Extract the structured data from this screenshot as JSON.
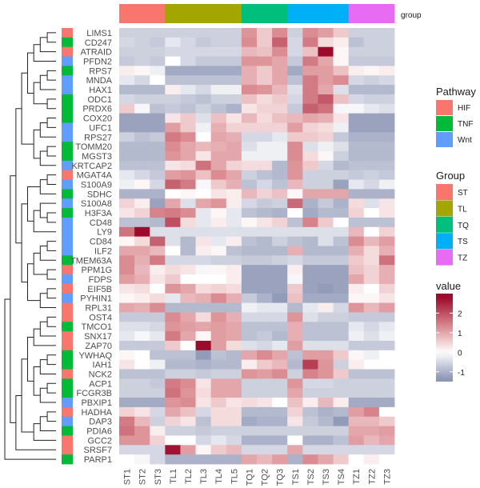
{
  "chart_data": {
    "type": "heatmap",
    "columns": [
      "ST1",
      "ST2",
      "ST3",
      "TL1",
      "TL2",
      "TL3",
      "TL4",
      "TL5",
      "TQ1",
      "TQ2",
      "TQ3",
      "TS1",
      "TS2",
      "TS3",
      "TS4",
      "TZ1",
      "TZ2",
      "TZ3"
    ],
    "rows": [
      "LIMS1",
      "CD247",
      "ATRAID",
      "PFDN2",
      "RPS7",
      "MNDA",
      "HAX1",
      "ODC1",
      "PRDX6",
      "COX20",
      "UFC1",
      "RPS27",
      "TOMM20",
      "MGST3",
      "KRTCAP2",
      "MGAT4A",
      "S100A9",
      "SDHC",
      "S100A8",
      "H3F3A",
      "CD48",
      "LY9",
      "CD84",
      "ILF2",
      "TMEM63A",
      "PPM1G",
      "FDPS",
      "EIF5B",
      "PYHIN1",
      "RPL31",
      "OST4",
      "TMCO1",
      "SNX17",
      "ZAP70",
      "YWHAQ",
      "IAH1",
      "NCK2",
      "ACP1",
      "FCGR3B",
      "PBXIP1",
      "HADHA",
      "DAP3",
      "PDIA6",
      "GCC2",
      "SRSF7",
      "PARP1"
    ],
    "values": [
      [
        -0.6,
        -0.6,
        -0.6,
        -0.6,
        -0.6,
        -0.6,
        -0.6,
        -0.6,
        1.2,
        0.6,
        1.3,
        -0.6,
        1.3,
        1.1,
        0.6,
        -0.6,
        -0.6,
        -0.6
      ],
      [
        -0.5,
        -0.6,
        -0.7,
        -0.3,
        -0.5,
        -0.7,
        -0.6,
        -0.6,
        1.3,
        0.6,
        1.8,
        -0.5,
        1.5,
        0.4,
        0.2,
        -0.8,
        -0.6,
        -0.6
      ],
      [
        -0.6,
        -0.6,
        -0.6,
        -0.5,
        -0.5,
        -0.5,
        -0.5,
        -0.5,
        0.8,
        0.7,
        1.3,
        -0.5,
        0.7,
        2.8,
        0.1,
        -0.6,
        -0.6,
        -0.6
      ],
      [
        -0.7,
        -0.6,
        -0.7,
        0.0,
        -0.5,
        -0.7,
        -0.7,
        -0.7,
        1.2,
        1.2,
        1.0,
        -0.7,
        1.5,
        1.0,
        0.1,
        -0.7,
        -0.7,
        -0.7
      ],
      [
        0.2,
        0.1,
        -0.2,
        -1.1,
        -1.1,
        -1.1,
        -1.1,
        -1.1,
        0.9,
        0.6,
        1.0,
        -1.1,
        1.1,
        1.1,
        0.7,
        0.2,
        0.1,
        0.2
      ],
      [
        -0.3,
        -0.5,
        0.0,
        -0.8,
        -0.8,
        -0.8,
        -0.8,
        -0.8,
        0.9,
        0.6,
        1.0,
        -0.8,
        1.5,
        1.1,
        1.3,
        -0.5,
        -0.6,
        -0.5
      ],
      [
        -0.9,
        -0.9,
        -0.9,
        0.2,
        -0.3,
        -0.5,
        -0.2,
        -0.2,
        1.3,
        1.2,
        0.8,
        -0.4,
        1.5,
        1.0,
        -0.4,
        -0.9,
        -0.9,
        -0.9
      ],
      [
        -0.5,
        -0.6,
        -0.6,
        -0.6,
        -0.7,
        -0.8,
        -0.6,
        -0.6,
        0.7,
        0.4,
        0.6,
        -0.5,
        1.5,
        1.9,
        0.7,
        -0.5,
        -0.6,
        -0.6
      ],
      [
        0.6,
        -0.1,
        -0.8,
        -0.7,
        -0.8,
        -0.6,
        -0.8,
        -1.0,
        0.3,
        0.5,
        0.5,
        -0.7,
        1.8,
        1.6,
        -0.1,
        -0.1,
        -0.3,
        -0.4
      ],
      [
        -1.2,
        -1.2,
        -1.2,
        0.3,
        0.6,
        -0.4,
        0.7,
        0.3,
        0.8,
        0.4,
        0.7,
        0.8,
        1.0,
        0.9,
        0.3,
        -1.2,
        -1.2,
        -1.2
      ],
      [
        -1.2,
        -1.2,
        -1.2,
        1.1,
        0.6,
        -0.2,
        0.9,
        0.5,
        0.5,
        0.5,
        0.5,
        1.1,
        0.5,
        0.4,
        -0.2,
        -1.2,
        -1.2,
        -1.2
      ],
      [
        -0.6,
        -0.8,
        -0.7,
        1.5,
        1.3,
        0.0,
        1.0,
        0.9,
        -0.5,
        -0.5,
        -0.3,
        0.6,
        0.6,
        0.5,
        -0.7,
        -1.0,
        -1.0,
        -1.0
      ],
      [
        -0.9,
        -0.9,
        -0.9,
        1.3,
        1.0,
        0.8,
        0.9,
        1.0,
        -0.4,
        -0.2,
        -0.2,
        1.3,
        -0.4,
        -0.2,
        -0.4,
        -0.9,
        -0.9,
        -0.9
      ],
      [
        -0.9,
        -0.9,
        -0.9,
        1.2,
        1.0,
        0.3,
        1.0,
        1.0,
        -0.2,
        -0.2,
        -0.2,
        1.3,
        0.4,
        0.1,
        -0.6,
        -0.9,
        -0.9,
        -0.9
      ],
      [
        -0.8,
        -0.8,
        -0.8,
        0.3,
        0.4,
        1.6,
        1.0,
        0.5,
        0.4,
        0.4,
        -0.9,
        1.2,
        0.6,
        -0.5,
        -0.9,
        -0.8,
        -0.8,
        -0.8
      ],
      [
        -0.3,
        -0.5,
        -0.7,
        1.1,
        1.2,
        0.7,
        1.3,
        1.0,
        -0.6,
        -0.8,
        -0.9,
        1.2,
        -0.6,
        -0.6,
        -0.6,
        -0.7,
        -0.6,
        -0.7
      ],
      [
        -0.2,
        0.1,
        -0.5,
        1.8,
        1.5,
        -0.1,
        0.6,
        0.9,
        -0.8,
        -0.5,
        -0.8,
        0.8,
        -0.6,
        -0.6,
        -1.2,
        -0.3,
        -0.5,
        -0.2
      ],
      [
        -1.0,
        -1.0,
        -1.0,
        0.0,
        0.1,
        0.0,
        0.3,
        0.2,
        0.8,
        0.5,
        0.7,
        0.1,
        1.0,
        1.0,
        1.0,
        -1.0,
        -1.0,
        -1.0
      ],
      [
        0.5,
        0.2,
        -1.2,
        1.0,
        -0.4,
        1.0,
        1.2,
        0.2,
        -0.5,
        -0.7,
        -0.6,
        1.7,
        -1.0,
        -0.7,
        -1.0,
        0.4,
        -0.4,
        0.3
      ],
      [
        0.3,
        0.5,
        1.4,
        1.5,
        1.3,
        -0.3,
        0.1,
        -0.3,
        -0.8,
        -0.9,
        -1.0,
        0.0,
        -1.1,
        -0.9,
        -0.9,
        0.5,
        0.0,
        0.3
      ],
      [
        -0.8,
        -0.8,
        -0.9,
        2.0,
        0.4,
        -0.3,
        0.2,
        -0.3,
        0.1,
        0.3,
        0.5,
        -0.8,
        1.4,
        0.6,
        0.0,
        -0.8,
        -0.8,
        -0.8
      ],
      [
        1.6,
        2.8,
        -0.4,
        -0.4,
        -0.4,
        -0.4,
        -0.4,
        -0.4,
        -0.4,
        -0.4,
        -0.4,
        -0.4,
        -0.4,
        -0.4,
        -0.4,
        0.8,
        0.0,
        0.5
      ],
      [
        0.1,
        0.4,
        1.8,
        -0.4,
        -0.9,
        0.3,
        -0.3,
        0.2,
        -0.8,
        -0.9,
        -0.6,
        -0.8,
        -0.9,
        -0.4,
        -0.8,
        1.3,
        0.8,
        1.1
      ],
      [
        1.0,
        1.0,
        0.8,
        0.0,
        -0.9,
        0.2,
        0.1,
        -0.8,
        -0.9,
        -0.9,
        -0.9,
        0.9,
        -0.9,
        -0.9,
        -0.9,
        0.9,
        0.4,
        0.9
      ],
      [
        1.3,
        0.9,
        1.5,
        -0.5,
        -0.5,
        -0.5,
        -0.6,
        -0.6,
        -0.7,
        -0.7,
        -0.6,
        -0.5,
        -0.7,
        -0.7,
        -0.7,
        0.6,
        0.4,
        1.6
      ],
      [
        1.3,
        0.8,
        0.2,
        0.4,
        0.3,
        -0.1,
        0.1,
        0.2,
        -1.2,
        -1.2,
        -1.2,
        0.2,
        -1.2,
        -1.2,
        -1.2,
        0.7,
        0.5,
        0.9
      ],
      [
        1.1,
        0.9,
        0.3,
        0.6,
        0.0,
        0.0,
        0.0,
        0.2,
        -1.2,
        -1.2,
        -1.2,
        -0.1,
        -1.2,
        -1.2,
        -1.2,
        1.0,
        0.5,
        0.9
      ],
      [
        0.3,
        0.4,
        0.0,
        1.2,
        1.0,
        0.4,
        0.5,
        0.4,
        -1.2,
        -1.2,
        -1.2,
        0.6,
        -1.2,
        -1.3,
        -1.2,
        0.2,
        0.0,
        0.5
      ],
      [
        0.1,
        0.2,
        0.4,
        -0.3,
        0.8,
        0.9,
        1.3,
        0.9,
        -0.7,
        -1.0,
        -1.3,
        0.7,
        -1.1,
        -1.1,
        -1.1,
        0.1,
        0.1,
        0.3
      ],
      [
        1.0,
        0.9,
        1.3,
        -0.9,
        -0.9,
        -0.9,
        -0.9,
        -0.9,
        -0.2,
        -0.3,
        -0.3,
        -0.9,
        -0.3,
        0.2,
        -0.5,
        1.2,
        0.8,
        1.1
      ],
      [
        -0.7,
        -0.7,
        -0.7,
        1.3,
        1.0,
        0.4,
        1.2,
        0.9,
        -0.5,
        -0.5,
        -0.5,
        1.2,
        -0.4,
        -0.6,
        -0.6,
        -0.7,
        -0.7,
        -0.7
      ],
      [
        -0.4,
        -0.4,
        -0.5,
        1.2,
        1.1,
        1.0,
        1.1,
        1.0,
        -0.8,
        -0.8,
        -0.8,
        0.9,
        -0.8,
        -0.8,
        -0.8,
        -0.3,
        -0.5,
        -0.3
      ],
      [
        -0.3,
        -0.1,
        -0.3,
        1.5,
        1.0,
        0.1,
        1.1,
        1.0,
        -0.8,
        -0.7,
        -0.9,
        0.9,
        -0.8,
        -0.8,
        -0.8,
        -0.2,
        -0.4,
        -0.2
      ],
      [
        -0.7,
        -0.7,
        -0.7,
        0.6,
        0.0,
        2.8,
        1.1,
        0.4,
        -0.4,
        -0.5,
        -0.3,
        1.1,
        -0.4,
        -0.4,
        -0.4,
        -0.7,
        -0.7,
        -0.7
      ],
      [
        0.1,
        0.0,
        -0.8,
        -0.8,
        -0.8,
        -1.3,
        -0.8,
        -0.9,
        1.0,
        1.3,
        1.0,
        -0.8,
        1.1,
        1.1,
        0.6,
        0.1,
        -0.2,
        0.0
      ],
      [
        0.3,
        0.0,
        -0.2,
        -0.9,
        -0.9,
        -1.0,
        -0.9,
        -0.9,
        0.2,
        0.6,
        0.8,
        -0.9,
        2.2,
        1.2,
        -0.6,
        0.2,
        0.0,
        0.0
      ],
      [
        -0.8,
        -0.8,
        -0.8,
        -0.6,
        -0.6,
        -0.7,
        -0.6,
        -0.6,
        1.2,
        1.1,
        1.3,
        -0.6,
        1.4,
        1.2,
        0.6,
        -0.8,
        -0.8,
        -0.8
      ],
      [
        -0.6,
        -0.6,
        -0.7,
        1.5,
        1.3,
        0.3,
        1.0,
        1.0,
        -0.6,
        -0.6,
        -0.6,
        1.2,
        -0.5,
        -0.5,
        -0.6,
        -0.6,
        -0.6,
        -0.6
      ],
      [
        -0.6,
        -0.6,
        -0.6,
        1.6,
        1.2,
        0.4,
        1.0,
        1.0,
        -0.6,
        -0.6,
        -0.6,
        1.0,
        -0.6,
        -0.6,
        -0.6,
        -0.6,
        -0.6,
        -0.6
      ],
      [
        -1.1,
        -1.1,
        -1.1,
        1.2,
        1.3,
        0.3,
        0.6,
        0.3,
        0.4,
        0.3,
        0.0,
        0.7,
        0.2,
        0.8,
        0.2,
        -1.1,
        -1.1,
        -1.1
      ],
      [
        0.5,
        0.3,
        -0.5,
        1.0,
        0.7,
        -0.5,
        0.4,
        0.4,
        -0.9,
        -0.9,
        -0.9,
        0.5,
        -0.8,
        -1.0,
        -0.9,
        1.1,
        1.4,
        0.0
      ],
      [
        1.5,
        0.8,
        -0.6,
        0.5,
        0.3,
        -0.8,
        0.4,
        0.4,
        -1.1,
        -1.0,
        -1.0,
        0.3,
        -0.7,
        -0.9,
        -1.3,
        0.8,
        0.8,
        0.6
      ],
      [
        1.6,
        1.2,
        0.2,
        -0.6,
        -0.6,
        -0.7,
        -0.6,
        -0.6,
        -0.6,
        -0.6,
        -0.6,
        -0.6,
        -0.6,
        -0.6,
        -0.6,
        1.0,
        1.0,
        1.1
      ],
      [
        1.2,
        1.2,
        0.5,
        0.0,
        0.0,
        -0.5,
        -0.3,
        -0.5,
        -1.0,
        -1.0,
        -1.0,
        0.0,
        -1.0,
        -1.0,
        -0.8,
        1.1,
        0.8,
        1.0
      ],
      [
        -0.5,
        -0.5,
        -0.5,
        2.7,
        1.1,
        0.1,
        0.6,
        0.8,
        -0.5,
        -0.5,
        -0.5,
        1.0,
        -0.5,
        -0.5,
        -0.5,
        -0.5,
        -0.5,
        -0.5
      ],
      [
        0.0,
        -0.1,
        -0.5,
        -1.0,
        -1.0,
        -1.0,
        -1.0,
        -1.0,
        1.0,
        0.8,
        1.1,
        -1.0,
        1.3,
        1.0,
        0.6,
        0.0,
        0.2,
        0.0
      ]
    ],
    "row_annotation": {
      "title": "Pathway",
      "values": [
        "HIF",
        "TNF",
        "HIF",
        "Wnt",
        "TNF",
        "Wnt",
        "Wnt",
        "TNF",
        "TNF",
        "TNF",
        "Wnt",
        "Wnt",
        "TNF",
        "TNF",
        "Wnt",
        "HIF",
        "Wnt",
        "TNF",
        "Wnt",
        "TNF",
        "Wnt",
        "Wnt",
        "Wnt",
        "Wnt",
        "TNF",
        "HIF",
        "Wnt",
        "HIF",
        "Wnt",
        "HIF",
        "HIF",
        "TNF",
        "HIF",
        "HIF",
        "TNF",
        "TNF",
        "HIF",
        "TNF",
        "TNF",
        "Wnt",
        "HIF",
        "Wnt",
        "TNF",
        "HIF",
        "HIF",
        "TNF"
      ],
      "legend": [
        {
          "label": "HIF",
          "color": "#f8766d"
        },
        {
          "label": "TNF",
          "color": "#00ba38"
        },
        {
          "label": "Wnt",
          "color": "#619cff"
        }
      ]
    },
    "column_annotation": {
      "label": "group",
      "title": "Group",
      "values": [
        "ST",
        "ST",
        "ST",
        "TL",
        "TL",
        "TL",
        "TL",
        "TL",
        "TQ",
        "TQ",
        "TQ",
        "TS",
        "TS",
        "TS",
        "TS",
        "TZ",
        "TZ",
        "TZ"
      ],
      "legend": [
        {
          "label": "ST",
          "color": "#f8766d"
        },
        {
          "label": "TL",
          "color": "#a3a500"
        },
        {
          "label": "TQ",
          "color": "#00bf7d"
        },
        {
          "label": "TS",
          "color": "#00b0f6"
        },
        {
          "label": "TZ",
          "color": "#e76bf3"
        }
      ]
    },
    "color_scale": {
      "title": "value",
      "range": [
        -1.5,
        3.0
      ],
      "ticks": [
        "2",
        "1",
        "0",
        "-1"
      ],
      "tick_values": [
        2,
        1,
        0,
        -1
      ],
      "stops": [
        {
          "value": -1.4,
          "color": "#8a93b3"
        },
        {
          "value": 0,
          "color": "#ffffff"
        },
        {
          "value": 1.3,
          "color": "#da8c92"
        },
        {
          "value": 2.8,
          "color": "#9e0a2c"
        }
      ]
    },
    "row_dendrogram": true
  }
}
